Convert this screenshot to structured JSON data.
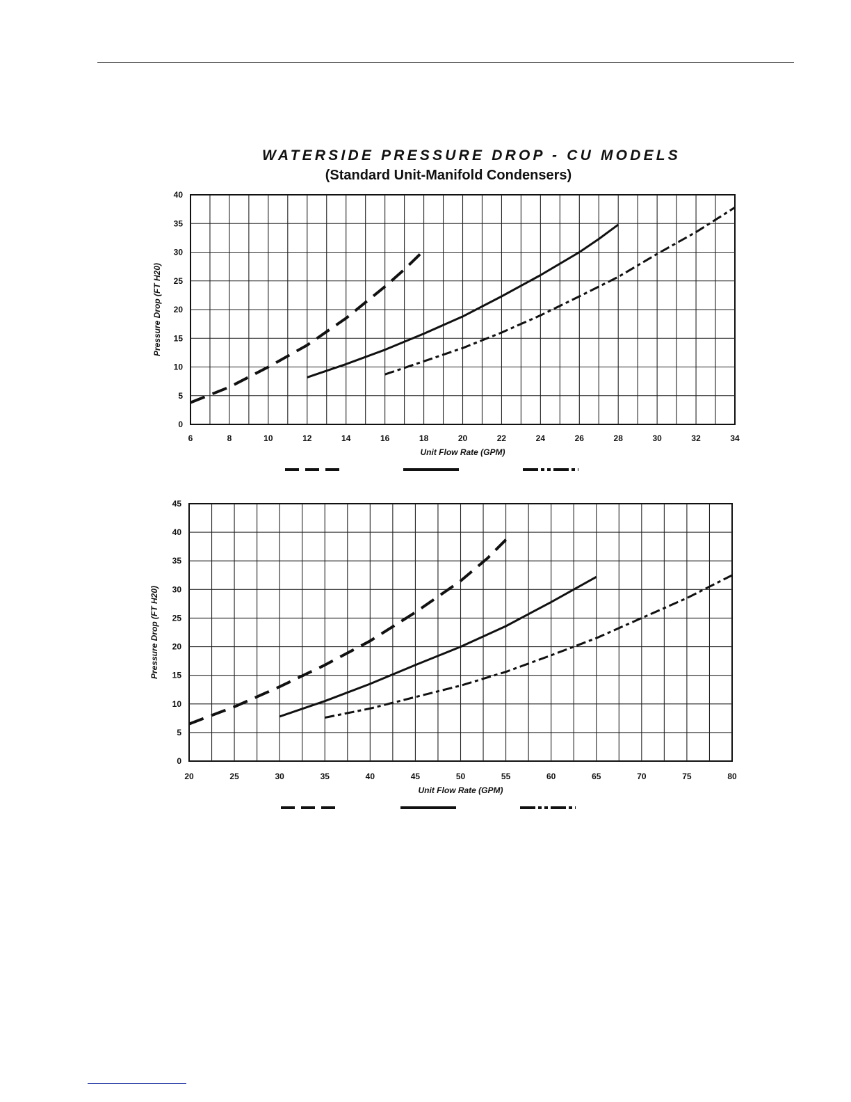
{
  "page": {
    "title": "WATERSIDE PRESSURE DROP - CU MODELS",
    "subtitle": "(Standard Unit-Manifold Condensers)"
  },
  "chart_data": [
    {
      "type": "line",
      "xlabel": "Unit Flow Rate (GPM)",
      "ylabel": "Pressure Drop (FT H20)",
      "xlim": [
        6,
        34
      ],
      "ylim": [
        0,
        40
      ],
      "x_ticks": [
        6,
        8,
        10,
        12,
        14,
        16,
        18,
        20,
        22,
        24,
        26,
        28,
        30,
        32,
        34
      ],
      "y_ticks": [
        0,
        5,
        10,
        15,
        20,
        25,
        30,
        35,
        40
      ],
      "x_grid_step": 1,
      "y_grid_step": 5,
      "grid": true,
      "legend_position": "bottom",
      "series": [
        {
          "line_style": "long-dash",
          "points": [
            [
              6,
              3.8
            ],
            [
              8,
              6.5
            ],
            [
              10,
              10.0
            ],
            [
              12,
              13.8
            ],
            [
              14,
              18.5
            ],
            [
              16,
              24.0
            ],
            [
              17,
              27.0
            ],
            [
              18,
              30.3
            ]
          ]
        },
        {
          "line_style": "solid",
          "points": [
            [
              12,
              8.2
            ],
            [
              14,
              10.5
            ],
            [
              16,
              13.0
            ],
            [
              18,
              15.8
            ],
            [
              20,
              18.8
            ],
            [
              22,
              22.3
            ],
            [
              24,
              26.0
            ],
            [
              26,
              30.0
            ],
            [
              27,
              32.3
            ],
            [
              28,
              34.8
            ]
          ]
        },
        {
          "line_style": "dash-dot",
          "points": [
            [
              16,
              8.7
            ],
            [
              18,
              11.0
            ],
            [
              20,
              13.3
            ],
            [
              22,
              16.0
            ],
            [
              24,
              19.0
            ],
            [
              26,
              22.3
            ],
            [
              28,
              25.7
            ],
            [
              30,
              29.7
            ],
            [
              32,
              33.5
            ],
            [
              34,
              37.8
            ]
          ]
        }
      ]
    },
    {
      "type": "line",
      "xlabel": "Unit Flow Rate (GPM)",
      "ylabel": "Pressure Drop (FT H20)",
      "xlim": [
        20,
        80
      ],
      "ylim": [
        0,
        45
      ],
      "x_ticks": [
        20,
        25,
        30,
        35,
        40,
        45,
        50,
        55,
        60,
        65,
        70,
        75,
        80
      ],
      "y_ticks": [
        0,
        5,
        10,
        15,
        20,
        25,
        30,
        35,
        40,
        45
      ],
      "x_grid_step": 2.5,
      "y_grid_step": 5,
      "grid": true,
      "legend_position": "bottom",
      "series": [
        {
          "line_style": "long-dash",
          "points": [
            [
              20,
              6.5
            ],
            [
              25,
              9.5
            ],
            [
              30,
              13.0
            ],
            [
              35,
              16.8
            ],
            [
              40,
              21.0
            ],
            [
              45,
              26.0
            ],
            [
              50,
              31.5
            ],
            [
              53,
              35.5
            ],
            [
              55,
              38.7
            ]
          ]
        },
        {
          "line_style": "solid",
          "points": [
            [
              30,
              7.8
            ],
            [
              35,
              10.5
            ],
            [
              40,
              13.5
            ],
            [
              45,
              16.8
            ],
            [
              50,
              20.0
            ],
            [
              55,
              23.6
            ],
            [
              60,
              27.8
            ],
            [
              65,
              32.2
            ]
          ]
        },
        {
          "line_style": "dash-dot",
          "points": [
            [
              35,
              7.6
            ],
            [
              40,
              9.2
            ],
            [
              45,
              11.2
            ],
            [
              50,
              13.2
            ],
            [
              55,
              15.6
            ],
            [
              60,
              18.5
            ],
            [
              65,
              21.5
            ],
            [
              70,
              25.0
            ],
            [
              75,
              28.5
            ],
            [
              80,
              32.5
            ]
          ]
        }
      ]
    }
  ]
}
